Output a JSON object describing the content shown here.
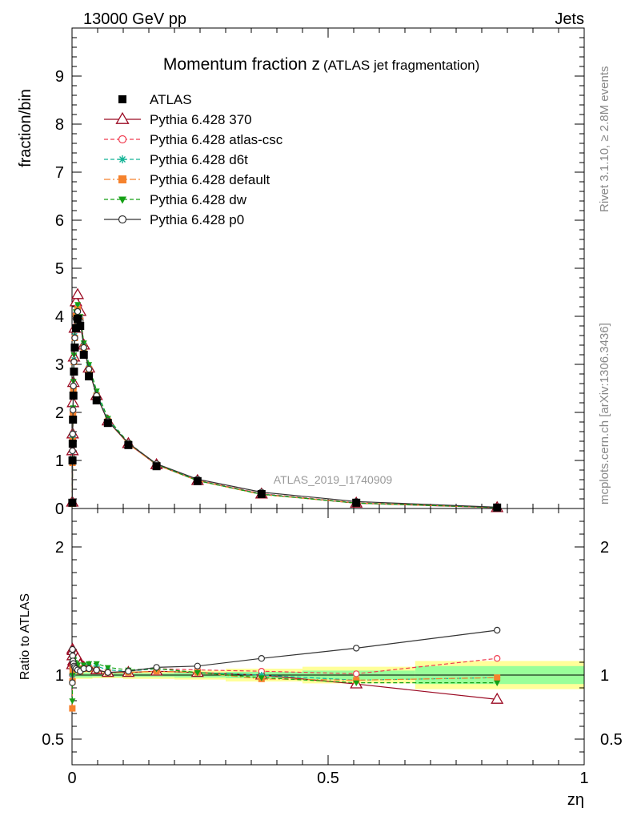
{
  "header": {
    "left_label": "13000 GeV pp",
    "right_label": "Jets"
  },
  "side_labels": {
    "rivet": "Rivet 3.1.10, ≥ 2.8M events",
    "source": "mcplots.cern.ch [arXiv:1306.3436]"
  },
  "chart_data": [
    {
      "type": "line",
      "title": "Momentum fraction z",
      "title_note": "(ATLAS jet fragmentation)",
      "ylabel": "fraction/bin",
      "xlim": [
        0,
        1
      ],
      "ylim": [
        0,
        10
      ],
      "yticks": [
        "0",
        "1",
        "2",
        "3",
        "4",
        "5",
        "6",
        "7",
        "8",
        "9"
      ],
      "watermark": "ATLAS_2019_I1740909",
      "legend_position": "top-left",
      "x": [
        0.0006,
        0.0009,
        0.0013,
        0.0019,
        0.0027,
        0.0038,
        0.0054,
        0.0077,
        0.011,
        0.016,
        0.023,
        0.033,
        0.048,
        0.07,
        0.11,
        0.165,
        0.245,
        0.37,
        0.555,
        0.83
      ],
      "data_series": {
        "name": "ATLAS",
        "values": [
          0.12,
          1.0,
          1.35,
          1.85,
          2.35,
          2.85,
          3.35,
          3.75,
          3.95,
          3.8,
          3.2,
          2.75,
          2.25,
          1.78,
          1.32,
          0.88,
          0.57,
          0.3,
          0.12,
          0.02
        ]
      },
      "series": [
        {
          "name": "Pythia 6.428 370",
          "color": "#9b0a23",
          "marker": "triangle",
          "dash": "solid",
          "values": [
            0.13,
            1.2,
            1.55,
            2.2,
            2.62,
            3.15,
            3.75,
            4.3,
            4.45,
            4.1,
            3.4,
            2.92,
            2.35,
            1.82,
            1.35,
            0.91,
            0.58,
            0.3,
            0.11,
            0.016
          ]
        },
        {
          "name": "Pythia 6.428 atlas-csc",
          "color": "#f03c50",
          "marker": "circle-open",
          "dash": "dashed",
          "values": [
            0.12,
            1.05,
            1.45,
            2.0,
            2.5,
            3.05,
            3.55,
            4.05,
            4.2,
            3.95,
            3.35,
            2.9,
            2.35,
            1.82,
            1.36,
            0.92,
            0.59,
            0.31,
            0.12,
            0.023
          ]
        },
        {
          "name": "Pythia 6.428 d6t",
          "color": "#14b496",
          "marker": "star",
          "dash": "dashed",
          "values": [
            0.12,
            1.05,
            1.5,
            2.05,
            2.55,
            3.1,
            3.6,
            4.05,
            4.2,
            3.95,
            3.4,
            2.95,
            2.4,
            1.85,
            1.36,
            0.92,
            0.58,
            0.3,
            0.115,
            0.02
          ]
        },
        {
          "name": "Pythia 6.428 default",
          "color": "#f5822d",
          "marker": "square",
          "dash": "dashdot",
          "values": [
            0.1,
            0.95,
            1.4,
            1.95,
            2.5,
            3.05,
            3.55,
            4.0,
            4.15,
            3.9,
            3.35,
            2.9,
            2.35,
            1.82,
            1.34,
            0.91,
            0.58,
            0.29,
            0.115,
            0.02
          ]
        },
        {
          "name": "Pythia 6.428 dw",
          "color": "#14a014",
          "marker": "triangle-down",
          "dash": "dashed",
          "values": [
            0.1,
            1.0,
            1.5,
            2.1,
            2.65,
            3.2,
            3.7,
            4.1,
            4.25,
            4.0,
            3.45,
            3.0,
            2.45,
            1.88,
            1.37,
            0.92,
            0.58,
            0.295,
            0.112,
            0.019
          ]
        },
        {
          "name": "Pythia 6.428 p0",
          "color": "#333333",
          "marker": "circle-open",
          "dash": "solid",
          "values": [
            0.12,
            1.2,
            1.55,
            2.05,
            2.55,
            3.05,
            3.55,
            3.95,
            4.1,
            3.9,
            3.35,
            2.9,
            2.35,
            1.82,
            1.36,
            0.93,
            0.61,
            0.34,
            0.145,
            0.027
          ]
        }
      ]
    },
    {
      "type": "line",
      "ylabel": "Ratio to ATLAS",
      "xlabel": "zη",
      "xlim": [
        0,
        1
      ],
      "ylim": [
        0.3,
        2.3
      ],
      "xticks": [
        "0",
        "0.5",
        "1"
      ],
      "yticks": [
        "0.5",
        "1",
        "2"
      ],
      "x": [
        0.0006,
        0.0009,
        0.0013,
        0.0019,
        0.0027,
        0.0038,
        0.0054,
        0.0077,
        0.011,
        0.016,
        0.023,
        0.033,
        0.048,
        0.07,
        0.11,
        0.165,
        0.245,
        0.37,
        0.555,
        0.83
      ],
      "uncertainty_bands": {
        "edges": [
          0,
          0.04,
          0.1,
          0.2,
          0.3,
          0.45,
          0.67,
          1.0
        ],
        "stat_half_width": [
          0.02,
          0.015,
          0.015,
          0.02,
          0.025,
          0.035,
          0.07
        ],
        "total_half_width": [
          0.03,
          0.025,
          0.03,
          0.035,
          0.05,
          0.065,
          0.11
        ]
      },
      "series": [
        {
          "name": "Pythia 6.428 370",
          "values": [
            1.08,
            1.2,
            1.15,
            1.19,
            1.11,
            1.1,
            1.12,
            1.15,
            1.13,
            1.08,
            1.06,
            1.06,
            1.04,
            1.02,
            1.02,
            1.03,
            1.02,
            1.0,
            0.93,
            0.81
          ]
        },
        {
          "name": "Pythia 6.428 atlas-csc",
          "values": [
            1.0,
            1.05,
            1.07,
            1.08,
            1.06,
            1.07,
            1.06,
            1.08,
            1.06,
            1.04,
            1.05,
            1.05,
            1.04,
            1.02,
            1.03,
            1.05,
            1.04,
            1.03,
            1.01,
            1.13
          ]
        },
        {
          "name": "Pythia 6.428 d6t",
          "values": [
            1.0,
            1.05,
            1.11,
            1.11,
            1.08,
            1.09,
            1.07,
            1.08,
            1.06,
            1.04,
            1.06,
            1.07,
            1.07,
            1.04,
            1.03,
            1.05,
            1.02,
            1.0,
            0.96,
            0.98
          ]
        },
        {
          "name": "Pythia 6.428 default",
          "values": [
            0.74,
            0.95,
            1.04,
            1.05,
            1.06,
            1.07,
            1.06,
            1.07,
            1.05,
            1.03,
            1.05,
            1.05,
            1.04,
            1.02,
            1.02,
            1.03,
            1.02,
            0.97,
            0.96,
            0.98
          ]
        },
        {
          "name": "Pythia 6.428 dw",
          "values": [
            0.8,
            1.0,
            1.11,
            1.13,
            1.13,
            1.12,
            1.1,
            1.09,
            1.08,
            1.05,
            1.08,
            1.09,
            1.09,
            1.06,
            1.04,
            1.05,
            1.02,
            0.98,
            0.94,
            0.94
          ]
        },
        {
          "name": "Pythia 6.428 p0",
          "values": [
            0.94,
            1.2,
            1.15,
            1.11,
            1.09,
            1.07,
            1.06,
            1.05,
            1.04,
            1.03,
            1.05,
            1.05,
            1.04,
            1.02,
            1.03,
            1.06,
            1.07,
            1.13,
            1.21,
            1.35
          ]
        }
      ]
    }
  ]
}
